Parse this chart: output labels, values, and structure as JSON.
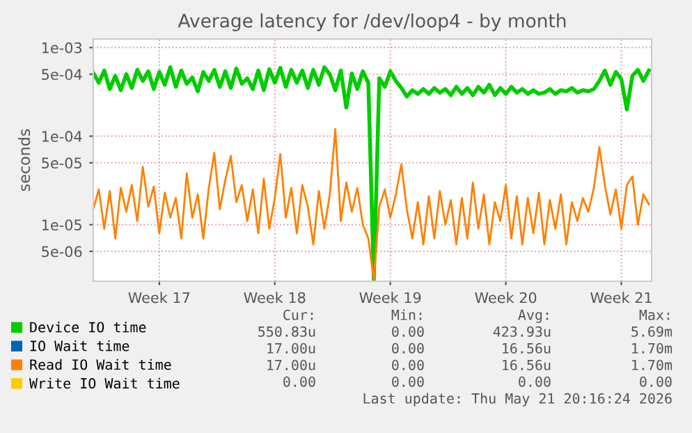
{
  "chart_data": {
    "type": "line",
    "title": "Average latency for /dev/loop4 - by month",
    "ylabel": "seconds",
    "log": "y",
    "ylim": [
      2.3e-06,
      0.00125
    ],
    "yticks": [
      {
        "value": 5e-06,
        "label": "5e-06"
      },
      {
        "value": 1e-05,
        "label": "1e-05"
      },
      {
        "value": 5e-05,
        "label": "5e-05"
      },
      {
        "value": 0.0001,
        "label": "1e-04"
      },
      {
        "value": 0.0005,
        "label": "5e-04"
      },
      {
        "value": 0.001,
        "label": "1e-03"
      }
    ],
    "xlim": [
      "2026-04-18T00:00",
      "2026-05-21T20:00"
    ],
    "xticks": [
      {
        "value": "2026-04-22",
        "label": "Week 17"
      },
      {
        "value": "2026-04-29",
        "label": "Week 18"
      },
      {
        "value": "2026-05-06",
        "label": "Week 19"
      },
      {
        "value": "2026-05-13",
        "label": "Week 20"
      },
      {
        "value": "2026-05-20",
        "label": "Week 21"
      }
    ],
    "grid": true,
    "legend": "bottom",
    "line_style": "solid",
    "marker": "none",
    "x": [
      "2026-04-18T00:00",
      "2026-04-18T08:00",
      "2026-04-18T16:00",
      "2026-04-19T00:00",
      "2026-04-19T08:00",
      "2026-04-19T16:00",
      "2026-04-20T00:00",
      "2026-04-20T08:00",
      "2026-04-20T16:00",
      "2026-04-21T00:00",
      "2026-04-21T08:00",
      "2026-04-21T16:00",
      "2026-04-22T00:00",
      "2026-04-22T08:00",
      "2026-04-22T16:00",
      "2026-04-23T00:00",
      "2026-04-23T08:00",
      "2026-04-23T16:00",
      "2026-04-24T00:00",
      "2026-04-24T08:00",
      "2026-04-24T16:00",
      "2026-04-25T00:00",
      "2026-04-25T08:00",
      "2026-04-25T16:00",
      "2026-04-26T00:00",
      "2026-04-26T08:00",
      "2026-04-26T16:00",
      "2026-04-27T00:00",
      "2026-04-27T08:00",
      "2026-04-27T16:00",
      "2026-04-28T00:00",
      "2026-04-28T08:00",
      "2026-04-28T16:00",
      "2026-04-29T00:00",
      "2026-04-29T08:00",
      "2026-04-29T16:00",
      "2026-04-30T00:00",
      "2026-04-30T08:00",
      "2026-04-30T16:00",
      "2026-05-01T00:00",
      "2026-05-01T08:00",
      "2026-05-01T16:00",
      "2026-05-02T00:00",
      "2026-05-02T08:00",
      "2026-05-02T16:00",
      "2026-05-03T00:00",
      "2026-05-03T08:00",
      "2026-05-03T16:00",
      "2026-05-04T00:00",
      "2026-05-04T08:00",
      "2026-05-04T16:00",
      "2026-05-05T00:00",
      "2026-05-05T08:00",
      "2026-05-05T16:00",
      "2026-05-06T00:00",
      "2026-05-06T08:00",
      "2026-05-06T16:00",
      "2026-05-07T00:00",
      "2026-05-07T08:00",
      "2026-05-07T16:00",
      "2026-05-08T00:00",
      "2026-05-08T08:00",
      "2026-05-08T16:00",
      "2026-05-09T00:00",
      "2026-05-09T08:00",
      "2026-05-09T16:00",
      "2026-05-10T00:00",
      "2026-05-10T08:00",
      "2026-05-10T16:00",
      "2026-05-11T00:00",
      "2026-05-11T08:00",
      "2026-05-11T16:00",
      "2026-05-12T00:00",
      "2026-05-12T08:00",
      "2026-05-12T16:00",
      "2026-05-13T00:00",
      "2026-05-13T08:00",
      "2026-05-13T16:00",
      "2026-05-14T00:00",
      "2026-05-14T08:00",
      "2026-05-14T16:00",
      "2026-05-15T00:00",
      "2026-05-15T08:00",
      "2026-05-15T16:00",
      "2026-05-16T00:00",
      "2026-05-16T08:00",
      "2026-05-16T16:00",
      "2026-05-17T00:00",
      "2026-05-17T08:00",
      "2026-05-17T16:00",
      "2026-05-18T00:00",
      "2026-05-18T08:00",
      "2026-05-18T16:00",
      "2026-05-19T00:00",
      "2026-05-19T08:00",
      "2026-05-19T16:00",
      "2026-05-20T00:00",
      "2026-05-20T08:00",
      "2026-05-20T16:00",
      "2026-05-21T00:00",
      "2026-05-21T08:00",
      "2026-05-21T16:00"
    ],
    "series": [
      {
        "name": "Device IO time",
        "color": "#00cc00",
        "values": [
          0.00052,
          0.0004,
          0.00055,
          0.00034,
          0.00048,
          0.00033,
          0.0005,
          0.00035,
          0.00056,
          0.00042,
          0.00054,
          0.00034,
          0.00053,
          0.00038,
          0.0006,
          0.00036,
          0.00055,
          0.00039,
          0.00046,
          0.00032,
          0.00053,
          0.00042,
          0.00056,
          0.00036,
          0.00054,
          0.00035,
          0.00058,
          0.00039,
          0.00045,
          0.00034,
          0.00055,
          0.00033,
          0.00057,
          0.0004,
          0.00059,
          0.00036,
          0.00056,
          0.0004,
          0.00055,
          0.00035,
          0.00056,
          0.00038,
          0.0006,
          0.0005,
          0.00033,
          0.00055,
          0.00021,
          0.00051,
          0.00034,
          0.00054,
          0.0004,
          2.4e-06,
          0.00045,
          0.00036,
          0.00054,
          0.00042,
          0.00035,
          0.00028,
          0.00033,
          0.0003,
          0.00034,
          0.0003,
          0.00035,
          0.00031,
          0.00034,
          0.00029,
          0.00036,
          0.0003,
          0.00035,
          0.00029,
          0.00036,
          0.00031,
          0.00038,
          0.00029,
          0.00035,
          0.0003,
          0.00036,
          0.00031,
          0.00034,
          0.0003,
          0.00033,
          0.0003,
          0.00031,
          0.00034,
          0.0003,
          0.00033,
          0.00032,
          0.00035,
          0.00031,
          0.00033,
          0.00032,
          0.00034,
          0.00042,
          0.00055,
          0.00038,
          0.00053,
          0.00044,
          0.0002,
          0.00048,
          0.00056,
          0.00042,
          0.00055
        ]
      },
      {
        "name": "IO Wait time",
        "color": "#0066b3",
        "values": [
          null,
          null,
          null,
          null,
          null,
          null,
          null,
          null,
          null,
          null,
          null,
          null,
          null,
          null,
          null,
          null,
          null,
          null,
          null,
          null,
          null,
          null,
          null,
          null,
          null,
          null,
          null,
          null,
          null,
          null,
          null,
          null,
          null,
          null,
          null,
          null,
          null,
          null,
          null,
          null,
          null,
          null,
          null,
          null,
          null,
          null,
          null,
          null,
          null,
          null,
          null,
          null,
          null,
          null,
          null,
          null,
          null,
          null,
          null,
          null,
          null,
          null,
          null,
          null,
          null,
          null,
          null,
          null,
          null,
          null,
          null,
          null,
          null,
          null,
          null,
          null,
          null,
          null,
          null,
          null,
          null,
          null,
          null,
          null,
          null,
          null,
          null,
          null,
          null,
          null,
          null,
          null,
          null,
          null,
          null,
          null,
          null,
          null,
          null,
          null,
          null,
          null
        ]
      },
      {
        "name": "Read IO Wait time",
        "color": "#ff8000",
        "values": [
          1.5e-05,
          2.5e-05,
          9e-06,
          2.4e-05,
          7e-06,
          2.6e-05,
          1.4e-05,
          2.8e-05,
          1.1e-05,
          4.5e-05,
          1.6e-05,
          2.7e-05,
          8e-06,
          2.3e-05,
          1.2e-05,
          2e-05,
          7e-06,
          3.8e-05,
          1.2e-05,
          2.2e-05,
          7e-06,
          2.6e-05,
          6.5e-05,
          1.5e-05,
          3.2e-05,
          6e-05,
          1.8e-05,
          2.8e-05,
          1.1e-05,
          2.5e-05,
          8e-06,
          3.3e-05,
          9e-06,
          2e-05,
          6.3e-05,
          1.2e-05,
          2.6e-05,
          8e-06,
          2.8e-05,
          1.6e-05,
          6e-06,
          2.4e-05,
          9e-06,
          2.2e-05,
          0.00012,
          1.1e-05,
          3e-05,
          1.4e-05,
          2.6e-05,
          1e-05,
          7e-06,
          2.4e-06,
          1.6e-05,
          2.5e-05,
          1.2e-05,
          2.2e-05,
          4.8e-05,
          1.5e-05,
          7e-06,
          1.8e-05,
          6e-06,
          2.1e-05,
          7e-06,
          2.4e-05,
          1e-05,
          1.9e-05,
          6e-06,
          2e-05,
          7e-06,
          3e-05,
          9e-06,
          2.2e-05,
          6e-06,
          1.8e-05,
          1.1e-05,
          2.8e-05,
          7e-06,
          2.1e-05,
          6e-06,
          2e-05,
          8e-06,
          2.3e-05,
          6e-06,
          1.9e-05,
          9e-06,
          2.2e-05,
          6e-06,
          1.8e-05,
          1.1e-05,
          2e-05,
          1.4e-05,
          2.6e-05,
          7.5e-05,
          2.8e-05,
          1.3e-05,
          2.5e-05,
          9e-06,
          2.8e-05,
          3.5e-05,
          1e-05,
          2.2e-05,
          1.7e-05
        ]
      },
      {
        "name": "Write IO Wait time",
        "color": "#ffcc00",
        "values": [
          null,
          null,
          null,
          null,
          null,
          null,
          null,
          null,
          null,
          null,
          null,
          null,
          null,
          null,
          null,
          null,
          null,
          null,
          null,
          null,
          null,
          null,
          null,
          null,
          null,
          null,
          null,
          null,
          null,
          null,
          null,
          null,
          null,
          null,
          null,
          null,
          null,
          null,
          null,
          null,
          null,
          null,
          null,
          null,
          null,
          null,
          null,
          null,
          null,
          null,
          null,
          null,
          null,
          null,
          null,
          null,
          null,
          null,
          null,
          null,
          null,
          null,
          null,
          null,
          null,
          null,
          null,
          null,
          null,
          null,
          null,
          null,
          null,
          null,
          null,
          null,
          null,
          null,
          null,
          null,
          null,
          null,
          null,
          null,
          null,
          null,
          null,
          null,
          null,
          null,
          null,
          null,
          null,
          null,
          null,
          null,
          null,
          null,
          null,
          null,
          null,
          null
        ]
      }
    ],
    "annotations": [
      "Cur:",
      "Min:",
      "Avg:",
      "Max:",
      "550.83u",
      "0.00",
      "423.93u",
      "5.69m",
      "17.00u",
      "0.00",
      "16.56u",
      "1.70m",
      "17.00u",
      "0.00",
      "16.56u",
      "1.70m",
      "0.00",
      "0.00",
      "0.00",
      "0.00",
      "Last update: Thu May 21 20:16:24 2026"
    ]
  }
}
